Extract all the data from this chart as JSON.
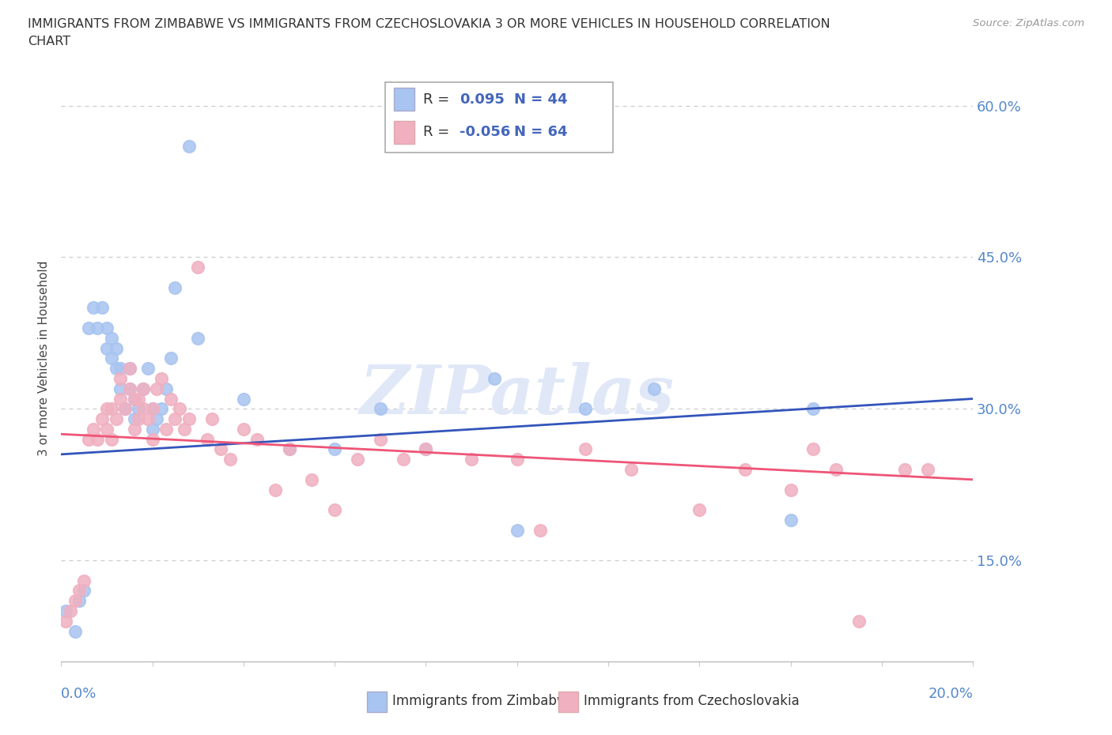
{
  "title_line1": "IMMIGRANTS FROM ZIMBABWE VS IMMIGRANTS FROM CZECHOSLOVAKIA 3 OR MORE VEHICLES IN HOUSEHOLD CORRELATION",
  "title_line2": "CHART",
  "source": "Source: ZipAtlas.com",
  "ylabel": "3 or more Vehicles in Household",
  "y_ticks": [
    0.15,
    0.3,
    0.45,
    0.6
  ],
  "y_tick_labels": [
    "15.0%",
    "30.0%",
    "45.0%",
    "60.0%"
  ],
  "x_lim": [
    0.0,
    0.2
  ],
  "y_lim": [
    0.05,
    0.65
  ],
  "zimbabwe_color": "#a8c4f0",
  "czechoslovakia_color": "#f0b0c0",
  "trend_zimbabwe_color": "#3355bb",
  "trend_czechoslovakia_color": "#ee5577",
  "r_zimbabwe": 0.095,
  "n_zimbabwe": 44,
  "r_czechoslovakia": -0.056,
  "n_czechoslovakia": 64,
  "zimbabwe_x": [
    0.001,
    0.003,
    0.004,
    0.005,
    0.006,
    0.007,
    0.008,
    0.009,
    0.01,
    0.01,
    0.011,
    0.011,
    0.012,
    0.012,
    0.013,
    0.013,
    0.014,
    0.015,
    0.015,
    0.016,
    0.016,
    0.017,
    0.018,
    0.019,
    0.02,
    0.02,
    0.021,
    0.022,
    0.023,
    0.024,
    0.025,
    0.028,
    0.03,
    0.04,
    0.05,
    0.06,
    0.07,
    0.08,
    0.095,
    0.1,
    0.115,
    0.13,
    0.16,
    0.165
  ],
  "zimbabwe_y": [
    0.1,
    0.08,
    0.11,
    0.12,
    0.38,
    0.4,
    0.38,
    0.4,
    0.36,
    0.38,
    0.35,
    0.37,
    0.34,
    0.36,
    0.32,
    0.34,
    0.3,
    0.32,
    0.34,
    0.29,
    0.31,
    0.3,
    0.32,
    0.34,
    0.28,
    0.3,
    0.29,
    0.3,
    0.32,
    0.35,
    0.42,
    0.56,
    0.37,
    0.31,
    0.26,
    0.26,
    0.3,
    0.26,
    0.33,
    0.18,
    0.3,
    0.32,
    0.19,
    0.3
  ],
  "czechoslovakia_x": [
    0.001,
    0.002,
    0.003,
    0.004,
    0.005,
    0.006,
    0.007,
    0.008,
    0.009,
    0.01,
    0.01,
    0.011,
    0.011,
    0.012,
    0.013,
    0.013,
    0.014,
    0.015,
    0.015,
    0.016,
    0.016,
    0.017,
    0.017,
    0.018,
    0.018,
    0.019,
    0.02,
    0.02,
    0.021,
    0.022,
    0.023,
    0.024,
    0.025,
    0.026,
    0.027,
    0.028,
    0.03,
    0.032,
    0.033,
    0.035,
    0.037,
    0.04,
    0.043,
    0.047,
    0.05,
    0.055,
    0.06,
    0.065,
    0.07,
    0.075,
    0.08,
    0.09,
    0.1,
    0.105,
    0.115,
    0.125,
    0.14,
    0.15,
    0.16,
    0.165,
    0.17,
    0.175,
    0.185,
    0.19
  ],
  "czechoslovakia_y": [
    0.09,
    0.1,
    0.11,
    0.12,
    0.13,
    0.27,
    0.28,
    0.27,
    0.29,
    0.28,
    0.3,
    0.27,
    0.3,
    0.29,
    0.31,
    0.33,
    0.3,
    0.32,
    0.34,
    0.28,
    0.31,
    0.29,
    0.31,
    0.3,
    0.32,
    0.29,
    0.27,
    0.3,
    0.32,
    0.33,
    0.28,
    0.31,
    0.29,
    0.3,
    0.28,
    0.29,
    0.44,
    0.27,
    0.29,
    0.26,
    0.25,
    0.28,
    0.27,
    0.22,
    0.26,
    0.23,
    0.2,
    0.25,
    0.27,
    0.25,
    0.26,
    0.25,
    0.25,
    0.18,
    0.26,
    0.24,
    0.2,
    0.24,
    0.22,
    0.26,
    0.24,
    0.09,
    0.24,
    0.24
  ],
  "watermark": "ZIPatlas",
  "background_color": "#ffffff",
  "grid_color": "#cccccc",
  "legend_text_color": "#4466bb",
  "tick_color": "#5588cc"
}
